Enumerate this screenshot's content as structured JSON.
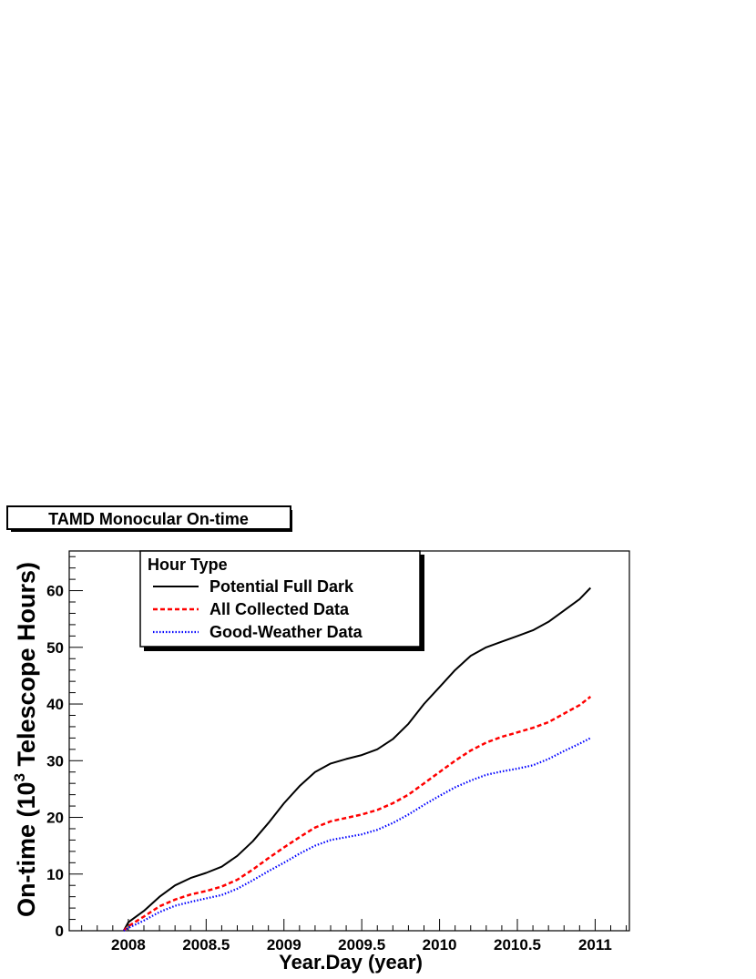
{
  "chart_data": {
    "type": "line",
    "title": "TAMD Monocular On-time",
    "xlabel": "Year.Day (year)",
    "ylabel_main": "On-time (10",
    "ylabel_sup": "3",
    "ylabel_end": " Telescope Hours)",
    "xlim": [
      2007.62,
      2011.22
    ],
    "ylim": [
      0,
      67
    ],
    "x_ticks": [
      2008,
      2008.5,
      2009,
      2009.5,
      2010,
      2010.5,
      2011
    ],
    "x_tick_labels": [
      "2008",
      "2008.5",
      "2009",
      "2009.5",
      "2010",
      "2010.5",
      "2011"
    ],
    "y_ticks": [
      0,
      10,
      20,
      30,
      40,
      50,
      60
    ],
    "y_tick_labels": [
      "0",
      "10",
      "20",
      "30",
      "40",
      "50",
      "60"
    ],
    "legend": {
      "title": "Hour Type",
      "position": "top-left"
    },
    "series": [
      {
        "name": "Potential Full Dark",
        "color": "#000000",
        "style": "solid",
        "x": [
          2007.97,
          2008.0,
          2008.1,
          2008.2,
          2008.3,
          2008.4,
          2008.5,
          2008.6,
          2008.7,
          2008.8,
          2008.9,
          2009.0,
          2009.1,
          2009.2,
          2009.3,
          2009.4,
          2009.5,
          2009.6,
          2009.7,
          2009.8,
          2009.9,
          2010.0,
          2010.1,
          2010.2,
          2010.3,
          2010.4,
          2010.5,
          2010.6,
          2010.7,
          2010.8,
          2010.9,
          2010.97
        ],
        "y": [
          0,
          1.5,
          3.5,
          6.0,
          8.0,
          9.3,
          10.2,
          11.3,
          13.2,
          15.8,
          19.0,
          22.5,
          25.5,
          28.0,
          29.5,
          30.3,
          31.0,
          32.0,
          33.8,
          36.5,
          40.0,
          43.0,
          46.0,
          48.5,
          50.0,
          51.0,
          52.0,
          53.0,
          54.5,
          56.5,
          58.5,
          60.5
        ]
      },
      {
        "name": "All Collected Data",
        "color": "#ff0000",
        "style": "dashed",
        "x": [
          2007.97,
          2008.0,
          2008.1,
          2008.2,
          2008.3,
          2008.4,
          2008.5,
          2008.6,
          2008.7,
          2008.8,
          2008.9,
          2009.0,
          2009.1,
          2009.2,
          2009.3,
          2009.4,
          2009.5,
          2009.6,
          2009.7,
          2009.8,
          2009.9,
          2010.0,
          2010.1,
          2010.2,
          2010.3,
          2010.4,
          2010.5,
          2010.6,
          2010.7,
          2010.8,
          2010.9,
          2010.97
        ],
        "y": [
          0,
          0.8,
          2.5,
          4.3,
          5.5,
          6.4,
          7.0,
          7.8,
          9.0,
          10.8,
          12.8,
          14.7,
          16.5,
          18.2,
          19.3,
          19.9,
          20.5,
          21.3,
          22.5,
          24.0,
          26.0,
          28.0,
          30.0,
          31.8,
          33.2,
          34.2,
          35.0,
          35.8,
          36.8,
          38.3,
          39.8,
          41.3
        ]
      },
      {
        "name": "Good-Weather Data",
        "color": "#0000ff",
        "style": "dotted",
        "x": [
          2007.97,
          2008.0,
          2008.1,
          2008.2,
          2008.3,
          2008.4,
          2008.5,
          2008.6,
          2008.7,
          2008.8,
          2008.9,
          2009.0,
          2009.1,
          2009.2,
          2009.3,
          2009.4,
          2009.5,
          2009.6,
          2009.7,
          2009.8,
          2009.9,
          2010.0,
          2010.1,
          2010.2,
          2010.3,
          2010.4,
          2010.5,
          2010.6,
          2010.7,
          2010.8,
          2010.9,
          2010.97
        ],
        "y": [
          0,
          0.5,
          1.8,
          3.3,
          4.4,
          5.1,
          5.7,
          6.3,
          7.4,
          8.9,
          10.5,
          12.0,
          13.6,
          15.0,
          16.0,
          16.5,
          17.0,
          17.8,
          19.0,
          20.5,
          22.2,
          23.8,
          25.3,
          26.5,
          27.5,
          28.1,
          28.6,
          29.2,
          30.3,
          31.7,
          33.0,
          34.0
        ]
      }
    ]
  }
}
